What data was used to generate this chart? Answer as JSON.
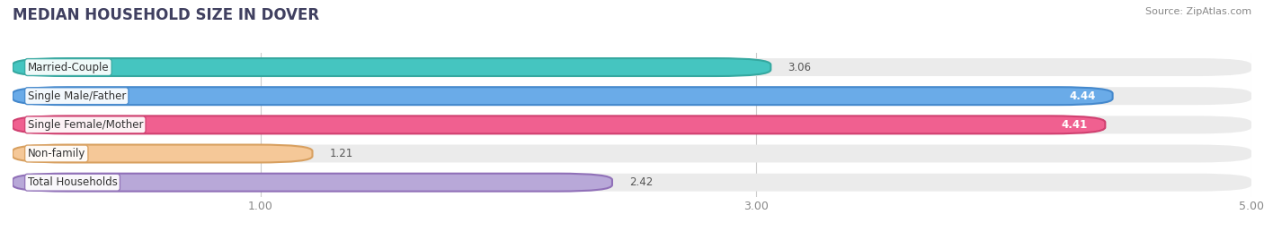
{
  "title": "MEDIAN HOUSEHOLD SIZE IN DOVER",
  "source": "Source: ZipAtlas.com",
  "categories": [
    "Married-Couple",
    "Single Male/Father",
    "Single Female/Mother",
    "Non-family",
    "Total Households"
  ],
  "values": [
    3.06,
    4.44,
    4.41,
    1.21,
    2.42
  ],
  "bar_colors": [
    "#45c5c0",
    "#6aabe8",
    "#f06090",
    "#f5c898",
    "#b8a8d8"
  ],
  "bar_edge_colors": [
    "#35a8a0",
    "#4488cc",
    "#d04070",
    "#d8a060",
    "#9070b8"
  ],
  "bg_bar_color": "#ebebeb",
  "xlim_max": 5.0,
  "xticks": [
    1.0,
    3.0,
    5.0
  ],
  "xtick_labels": [
    "1.00",
    "3.00",
    "5.00"
  ],
  "bg_color": "#ffffff",
  "label_fontsize": 8.5,
  "value_fontsize": 8.5,
  "title_fontsize": 12,
  "title_color": "#404060"
}
